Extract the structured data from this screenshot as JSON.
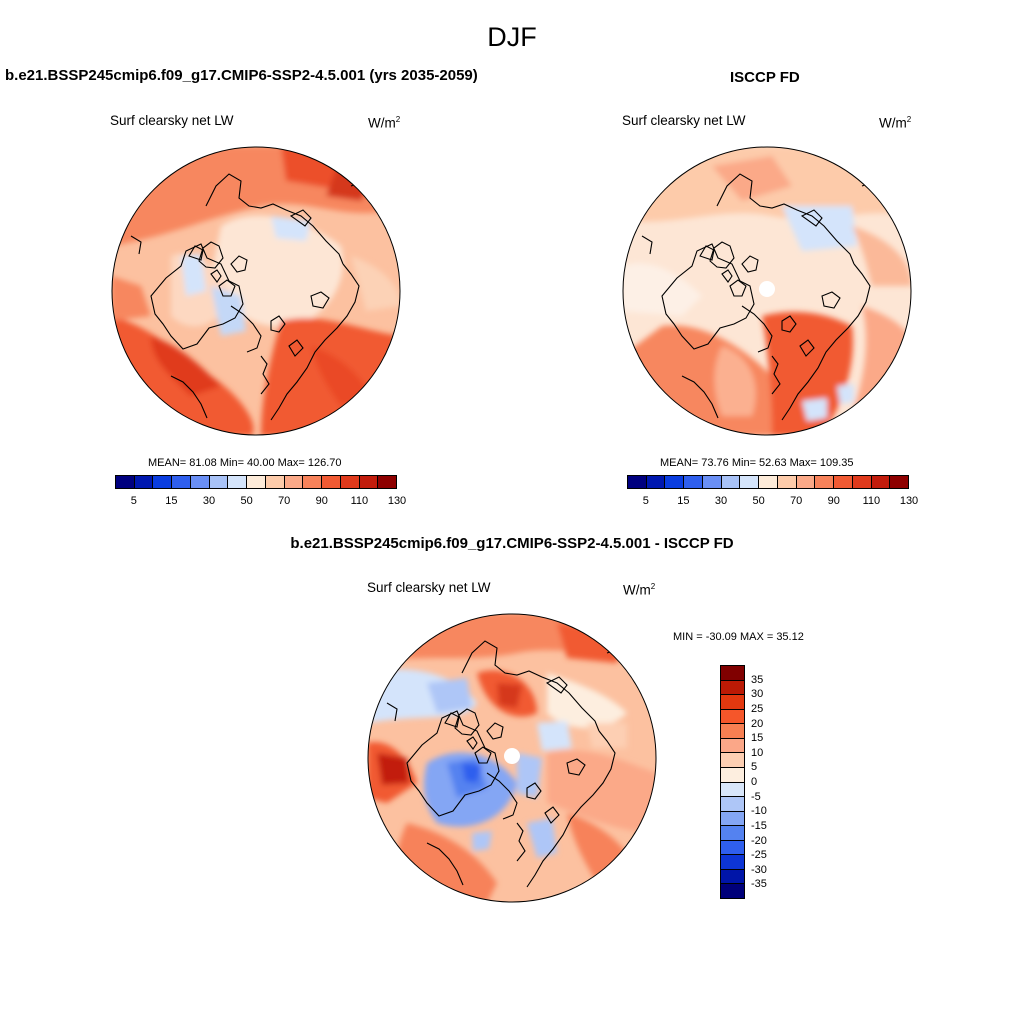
{
  "suptitle": "DJF",
  "panels": [
    {
      "title": "b.e21.BSSP245cmip6.f09_g17.CMIP6-SSP2-4.5.001 (yrs 2035-2059)",
      "variable": "Surf clearsky net LW",
      "units_base": "W/m",
      "units_exp": "2",
      "stats": "MEAN=  81.08  Min=  40.00  Max= 126.70"
    },
    {
      "title": "ISCCP FD",
      "variable": "Surf clearsky net LW",
      "units_base": "W/m",
      "units_exp": "2",
      "stats": "MEAN=  73.76  Min=  52.63  Max= 109.35"
    },
    {
      "title": "b.e21.BSSP245cmip6.f09_g17.CMIP6-SSP2-4.5.001 - ISCCP FD",
      "variable": "Surf clearsky net LW",
      "units_base": "W/m",
      "units_exp": "2",
      "stats": "MIN = -30.09 MAX =  35.12"
    }
  ],
  "colorbar_main": {
    "colors": [
      "#00007f",
      "#0018b0",
      "#0a3de0",
      "#2f5fee",
      "#6a8ff5",
      "#a8c2f7",
      "#d4e4fb",
      "#fdebd9",
      "#fdcbaa",
      "#fba988",
      "#f7825a",
      "#f15a33",
      "#e03a1c",
      "#c21c0c",
      "#8e0000"
    ],
    "ticks": [
      "5",
      "15",
      "30",
      "50",
      "70",
      "90",
      "110",
      "130"
    ]
  },
  "colorbar_diff": {
    "colors": [
      "#800000",
      "#bb1a05",
      "#e3380f",
      "#f5562a",
      "#f77f52",
      "#fba788",
      "#fdcfb3",
      "#fdeedf",
      "#d8e6fa",
      "#aec6f7",
      "#84a6f4",
      "#5482f0",
      "#2f5fee",
      "#0d35d6",
      "#0015a8",
      "#00007a"
    ],
    "ticks": [
      "35",
      "30",
      "25",
      "20",
      "15",
      "10",
      "5",
      "0",
      "-5",
      "-10",
      "-15",
      "-20",
      "-25",
      "-30",
      "-35"
    ]
  }
}
